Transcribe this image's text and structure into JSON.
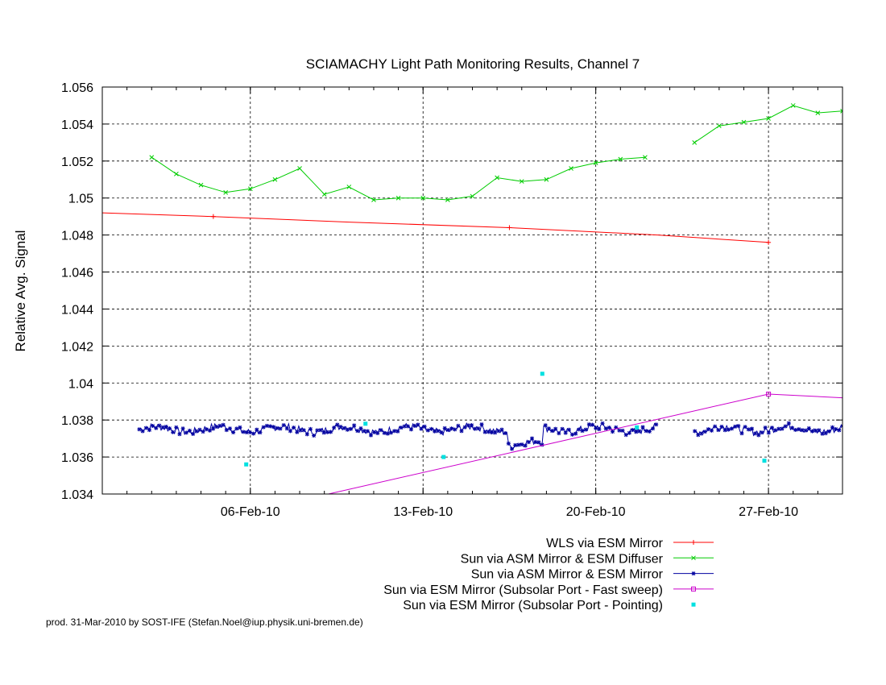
{
  "chart_data": {
    "type": "line",
    "title": "SCIAMACHY Light Path Monitoring Results, Channel 7",
    "ylabel": "Relative Avg. Signal",
    "xlabel": "",
    "ylim": [
      1.034,
      1.056
    ],
    "xlim": [
      "2010-01-31",
      "2010-03-02"
    ],
    "y_ticks": [
      "1.034",
      "1.036",
      "1.038",
      "1.04",
      "1.042",
      "1.044",
      "1.046",
      "1.048",
      "1.05",
      "1.052",
      "1.054",
      "1.056"
    ],
    "x_ticks": [
      {
        "label": "06-Feb-10",
        "date": "2010-02-06"
      },
      {
        "label": "13-Feb-10",
        "date": "2010-02-13"
      },
      {
        "label": "20-Feb-10",
        "date": "2010-02-20"
      },
      {
        "label": "27-Feb-10",
        "date": "2010-02-27"
      }
    ],
    "grid": true,
    "legend_position": "bottom-right",
    "series": [
      {
        "name": "WLS via ESM Mirror",
        "color": "#ff0000",
        "marker": "plus",
        "x": [
          "2010-01-31",
          "2010-02-04T12:00",
          "2010-02-10",
          "2010-02-16T12:00",
          "2010-02-22T12:00",
          "2010-02-27"
        ],
        "y": [
          1.0492,
          1.049,
          1.0487,
          1.0484,
          1.048,
          1.0476
        ],
        "marked": [
          false,
          true,
          false,
          true,
          false,
          true
        ]
      },
      {
        "name": "Sun via ASM Mirror & ESM Diffuser",
        "color": "#00cc00",
        "marker": "x",
        "segments": [
          {
            "x": [
              "2010-02-02",
              "2010-02-03",
              "2010-02-04",
              "2010-02-05",
              "2010-02-06",
              "2010-02-07",
              "2010-02-08",
              "2010-02-09",
              "2010-02-10",
              "2010-02-11",
              "2010-02-12",
              "2010-02-13",
              "2010-02-14",
              "2010-02-15",
              "2010-02-16",
              "2010-02-17",
              "2010-02-18",
              "2010-02-19",
              "2010-02-20",
              "2010-02-21",
              "2010-02-22"
            ],
            "y": [
              1.0522,
              1.0513,
              1.0507,
              1.0503,
              1.0505,
              1.051,
              1.0516,
              1.0502,
              1.0506,
              1.0499,
              1.05,
              1.05,
              1.0499,
              1.0501,
              1.0511,
              1.0509,
              1.051,
              1.0516,
              1.0519,
              1.0521,
              1.0522
            ]
          },
          {
            "x": [
              "2010-02-24",
              "2010-02-25",
              "2010-02-26",
              "2010-02-27",
              "2010-02-28",
              "2010-03-01",
              "2010-03-02"
            ],
            "y": [
              1.053,
              1.0539,
              1.0541,
              1.0543,
              1.055,
              1.0546,
              1.0547
            ]
          }
        ]
      },
      {
        "name": "Sun via ASM Mirror & ESM Mirror",
        "color": "#0000a0",
        "marker": "star",
        "x_range": [
          "2010-02-01T12:00",
          "2010-03-02"
        ],
        "mean": 1.0375,
        "noise": 0.0002
      },
      {
        "name": "Sun via ESM Mirror (Subsolar Port - Fast sweep)",
        "color": "#cc00cc",
        "marker": "square",
        "x": [
          "2010-02-09T04:00",
          "2010-02-27",
          "2010-03-02"
        ],
        "y": [
          1.034,
          1.0394,
          1.0392
        ],
        "marked": [
          false,
          true,
          false
        ]
      },
      {
        "name": "Sun via ESM Mirror (Subsolar Port - Pointing)",
        "color": "#00e0e0",
        "marker": "dot",
        "x": [
          "2010-02-05T20:00",
          "2010-02-10T16:00",
          "2010-02-13T20:00",
          "2010-02-17T20:00",
          "2010-02-21T16:00",
          "2010-02-26T20:00"
        ],
        "y": [
          1.0356,
          1.0378,
          1.036,
          1.0405,
          1.0376,
          1.0358
        ]
      }
    ]
  },
  "credit": "prod. 31-Mar-2010 by SOST-IFE (Stefan.Noel@iup.physik.uni-bremen.de)"
}
